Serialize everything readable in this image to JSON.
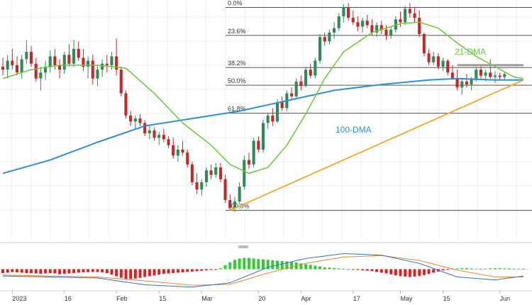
{
  "chart_data": {
    "type": "candlestick",
    "title": "",
    "xlabel": "",
    "ylabel": "",
    "x_tick_labels": [
      "2023",
      "16",
      "Feb",
      "15",
      "Mar",
      "20",
      "Apr",
      "17",
      "May",
      "15",
      "Jun"
    ],
    "x_tick_index": [
      2,
      13,
      24,
      33,
      42,
      54,
      63,
      74,
      84,
      93,
      105
    ],
    "index_range": [
      0,
      110
    ],
    "price_range": [
      0.865,
      1.023
    ],
    "grid": true,
    "colors": {
      "bull": "#2e8b57",
      "bear": "#c62828",
      "dma21": "#66cc33",
      "dma100": "#2f8fd8",
      "trend": "#f5a623",
      "resistance": "#999999",
      "fib": "#555555",
      "macd_line": "#2f6fd0",
      "signal_line": "#e8862c",
      "hist_pos": "#33cc33",
      "hist_neg": "#e02020"
    },
    "candles": [
      [
        0.978,
        0.984,
        0.972,
        0.976
      ],
      [
        0.976,
        0.986,
        0.97,
        0.982
      ],
      [
        0.982,
        0.99,
        0.976,
        0.979
      ],
      [
        0.979,
        0.985,
        0.972,
        0.974
      ],
      [
        0.974,
        0.986,
        0.97,
        0.983
      ],
      [
        0.983,
        0.996,
        0.98,
        0.988
      ],
      [
        0.988,
        0.992,
        0.978,
        0.98
      ],
      [
        0.98,
        0.984,
        0.968,
        0.97
      ],
      [
        0.97,
        0.978,
        0.962,
        0.974
      ],
      [
        0.974,
        0.982,
        0.969,
        0.978
      ],
      [
        0.978,
        0.989,
        0.974,
        0.985
      ],
      [
        0.985,
        0.99,
        0.976,
        0.979
      ],
      [
        0.979,
        0.983,
        0.97,
        0.976
      ],
      [
        0.976,
        0.988,
        0.973,
        0.986
      ],
      [
        0.986,
        0.993,
        0.978,
        0.98
      ],
      [
        0.98,
        0.996,
        0.978,
        0.99
      ],
      [
        0.99,
        0.995,
        0.982,
        0.984
      ],
      [
        0.984,
        0.99,
        0.975,
        0.978
      ],
      [
        0.978,
        0.985,
        0.97,
        0.982
      ],
      [
        0.982,
        0.986,
        0.966,
        0.97
      ],
      [
        0.97,
        0.979,
        0.965,
        0.976
      ],
      [
        0.976,
        0.983,
        0.971,
        0.98
      ],
      [
        0.98,
        0.986,
        0.974,
        0.979
      ],
      [
        0.979,
        0.988,
        0.976,
        0.985
      ],
      [
        0.985,
        0.997,
        0.972,
        0.976
      ],
      [
        0.976,
        0.978,
        0.958,
        0.96
      ],
      [
        0.96,
        0.962,
        0.943,
        0.945
      ],
      [
        0.945,
        0.948,
        0.938,
        0.941
      ],
      [
        0.941,
        0.945,
        0.936,
        0.943
      ],
      [
        0.943,
        0.946,
        0.938,
        0.94
      ],
      [
        0.94,
        0.942,
        0.931,
        0.933
      ],
      [
        0.933,
        0.938,
        0.929,
        0.935
      ],
      [
        0.935,
        0.937,
        0.928,
        0.93
      ],
      [
        0.93,
        0.934,
        0.925,
        0.932
      ],
      [
        0.932,
        0.936,
        0.927,
        0.929
      ],
      [
        0.929,
        0.931,
        0.923,
        0.925
      ],
      [
        0.925,
        0.93,
        0.916,
        0.918
      ],
      [
        0.918,
        0.925,
        0.914,
        0.922
      ],
      [
        0.922,
        0.928,
        0.918,
        0.92
      ],
      [
        0.92,
        0.922,
        0.91,
        0.912
      ],
      [
        0.912,
        0.914,
        0.898,
        0.9
      ],
      [
        0.9,
        0.906,
        0.892,
        0.895
      ],
      [
        0.895,
        0.902,
        0.891,
        0.9
      ],
      [
        0.9,
        0.91,
        0.897,
        0.908
      ],
      [
        0.908,
        0.912,
        0.902,
        0.905
      ],
      [
        0.905,
        0.913,
        0.903,
        0.91
      ],
      [
        0.91,
        0.913,
        0.9,
        0.902
      ],
      [
        0.902,
        0.905,
        0.886,
        0.888
      ],
      [
        0.888,
        0.892,
        0.881,
        0.883
      ],
      [
        0.883,
        0.89,
        0.88,
        0.887
      ],
      [
        0.887,
        0.9,
        0.885,
        0.897
      ],
      [
        0.897,
        0.918,
        0.895,
        0.915
      ],
      [
        0.915,
        0.92,
        0.909,
        0.912
      ],
      [
        0.912,
        0.93,
        0.91,
        0.928
      ],
      [
        0.928,
        0.931,
        0.92,
        0.922
      ],
      [
        0.922,
        0.942,
        0.92,
        0.94
      ],
      [
        0.94,
        0.947,
        0.936,
        0.945
      ],
      [
        0.945,
        0.95,
        0.938,
        0.941
      ],
      [
        0.941,
        0.956,
        0.94,
        0.954
      ],
      [
        0.954,
        0.958,
        0.948,
        0.95
      ],
      [
        0.95,
        0.962,
        0.948,
        0.96
      ],
      [
        0.96,
        0.964,
        0.956,
        0.958
      ],
      [
        0.958,
        0.97,
        0.956,
        0.968
      ],
      [
        0.968,
        0.972,
        0.962,
        0.965
      ],
      [
        0.965,
        0.978,
        0.964,
        0.976
      ],
      [
        0.976,
        0.98,
        0.97,
        0.972
      ],
      [
        0.972,
        0.984,
        0.97,
        0.982
      ],
      [
        0.982,
        1.0,
        0.98,
        0.998
      ],
      [
        0.998,
        1.001,
        0.992,
        0.995
      ],
      [
        0.995,
        1.003,
        0.993,
        1.001
      ],
      [
        1.001,
        1.008,
        0.997,
        1.004
      ],
      [
        1.004,
        1.014,
        1.002,
        1.012
      ],
      [
        1.012,
        1.02,
        1.008,
        1.018
      ],
      [
        1.018,
        1.021,
        1.009,
        1.011
      ],
      [
        1.011,
        1.016,
        1.006,
        1.008
      ],
      [
        1.008,
        1.012,
        1.002,
        1.005
      ],
      [
        1.005,
        1.011,
        1.001,
        1.009
      ],
      [
        1.009,
        1.013,
        1.004,
        1.006
      ],
      [
        1.006,
        1.01,
        0.999,
        1.001
      ],
      [
        1.001,
        1.008,
        0.998,
        1.006
      ],
      [
        1.006,
        1.009,
        1.0,
        1.003
      ],
      [
        1.003,
        1.006,
        0.996,
        0.999
      ],
      [
        0.999,
        1.005,
        0.997,
        1.003
      ],
      [
        1.003,
        1.012,
        1.001,
        1.01
      ],
      [
        1.01,
        1.015,
        1.005,
        1.008
      ],
      [
        1.008,
        1.019,
        1.006,
        1.017
      ],
      [
        1.017,
        1.021,
        1.011,
        1.014
      ],
      [
        1.014,
        1.018,
        1.008,
        1.011
      ],
      [
        1.011,
        1.016,
        0.998,
        1.0
      ],
      [
        1.0,
        1.001,
        0.985,
        0.987
      ],
      [
        0.987,
        0.99,
        0.979,
        0.981
      ],
      [
        0.981,
        0.988,
        0.979,
        0.985
      ],
      [
        0.985,
        0.987,
        0.976,
        0.978
      ],
      [
        0.978,
        0.984,
        0.975,
        0.982
      ],
      [
        0.982,
        0.983,
        0.972,
        0.974
      ],
      [
        0.974,
        0.979,
        0.969,
        0.97
      ],
      [
        0.97,
        0.976,
        0.962,
        0.964
      ],
      [
        0.964,
        0.97,
        0.959,
        0.968
      ],
      [
        0.968,
        0.973,
        0.964,
        0.966
      ],
      [
        0.966,
        0.971,
        0.962,
        0.97
      ],
      [
        0.97,
        0.978,
        0.968,
        0.976
      ],
      [
        0.976,
        0.979,
        0.97,
        0.972
      ],
      [
        0.972,
        0.976,
        0.968,
        0.974
      ],
      [
        0.974,
        0.983,
        0.97,
        0.971
      ],
      [
        0.971,
        0.975,
        0.967,
        0.972
      ],
      [
        0.972,
        0.974,
        0.969,
        0.971
      ],
      [
        0.971,
        0.974,
        0.969,
        0.973
      ]
    ],
    "fibonacci": [
      {
        "label": "0.0%",
        "value": 1.018
      },
      {
        "label": "23.6%",
        "value": 0.9991
      },
      {
        "label": "38.2%",
        "value": 0.9774
      },
      {
        "label": "50.0%",
        "value": 0.9655
      },
      {
        "label": "61.8%",
        "value": 0.9466
      },
      {
        "label": "100.0%",
        "value": 0.881
      }
    ],
    "dma21": {
      "label": "21-DMA",
      "points": [
        [
          0,
          0.97
        ],
        [
          6,
          0.976
        ],
        [
          12,
          0.979
        ],
        [
          20,
          0.979
        ],
        [
          26,
          0.977
        ],
        [
          32,
          0.96
        ],
        [
          38,
          0.94
        ],
        [
          44,
          0.925
        ],
        [
          48,
          0.912
        ],
        [
          52,
          0.906
        ],
        [
          56,
          0.91
        ],
        [
          60,
          0.925
        ],
        [
          64,
          0.946
        ],
        [
          68,
          0.97
        ],
        [
          72,
          0.988
        ],
        [
          78,
          1.001
        ],
        [
          84,
          1.007
        ],
        [
          88,
          1.008
        ],
        [
          92,
          1.004
        ],
        [
          96,
          0.994
        ],
        [
          100,
          0.985
        ],
        [
          104,
          0.978
        ],
        [
          108,
          0.971
        ],
        [
          110,
          0.97
        ]
      ]
    },
    "dma100": {
      "label": "100-DMA",
      "points": [
        [
          0,
          0.906
        ],
        [
          10,
          0.915
        ],
        [
          20,
          0.927
        ],
        [
          30,
          0.938
        ],
        [
          40,
          0.943
        ],
        [
          50,
          0.948
        ],
        [
          60,
          0.955
        ],
        [
          70,
          0.962
        ],
        [
          80,
          0.966
        ],
        [
          90,
          0.969
        ],
        [
          96,
          0.97
        ],
        [
          104,
          0.969
        ],
        [
          110,
          0.969
        ]
      ]
    },
    "trendline": {
      "points": [
        [
          48,
          0.881
        ],
        [
          110,
          0.969
        ]
      ]
    },
    "resistance": {
      "points": [
        [
          96,
          0.979
        ],
        [
          110,
          0.979
        ]
      ]
    },
    "macd": {
      "range": [
        -1,
        1
      ],
      "macd_line": [
        [
          0,
          -0.35
        ],
        [
          10,
          -0.4
        ],
        [
          20,
          -0.45
        ],
        [
          30,
          -0.8
        ],
        [
          40,
          -0.92
        ],
        [
          48,
          -0.7
        ],
        [
          56,
          0.1
        ],
        [
          64,
          0.55
        ],
        [
          72,
          0.8
        ],
        [
          80,
          0.72
        ],
        [
          88,
          0.3
        ],
        [
          96,
          -0.4
        ],
        [
          104,
          -0.55
        ],
        [
          110,
          -0.35
        ]
      ],
      "signal_line": [
        [
          0,
          -0.3
        ],
        [
          10,
          -0.35
        ],
        [
          20,
          -0.4
        ],
        [
          30,
          -0.6
        ],
        [
          40,
          -0.82
        ],
        [
          48,
          -0.78
        ],
        [
          56,
          -0.2
        ],
        [
          64,
          0.3
        ],
        [
          72,
          0.62
        ],
        [
          80,
          0.7
        ],
        [
          88,
          0.45
        ],
        [
          96,
          -0.05
        ],
        [
          104,
          -0.4
        ],
        [
          110,
          -0.4
        ]
      ],
      "histogram": [
        -0.2,
        -0.18,
        -0.15,
        -0.16,
        -0.18,
        -0.2,
        -0.2,
        -0.22,
        -0.24,
        -0.22,
        -0.2,
        -0.22,
        -0.26,
        -0.24,
        -0.22,
        -0.2,
        -0.18,
        -0.16,
        -0.15,
        -0.14,
        -0.14,
        -0.16,
        -0.2,
        -0.28,
        -0.36,
        -0.44,
        -0.5,
        -0.5,
        -0.48,
        -0.44,
        -0.4,
        -0.36,
        -0.32,
        -0.28,
        -0.24,
        -0.22,
        -0.2,
        -0.18,
        -0.16,
        -0.14,
        -0.12,
        -0.1,
        -0.08,
        -0.06,
        -0.04,
        -0.02,
        0.05,
        0.2,
        0.35,
        0.48,
        0.55,
        0.58,
        0.58,
        0.55,
        0.52,
        0.5,
        0.48,
        0.46,
        0.44,
        0.42,
        0.4,
        0.38,
        0.34,
        0.3,
        0.26,
        0.22,
        0.18,
        0.14,
        0.1,
        0.08,
        0.06,
        0.04,
        0.02,
        0.0,
        -0.02,
        -0.04,
        -0.06,
        -0.08,
        -0.1,
        -0.14,
        -0.18,
        -0.22,
        -0.26,
        -0.32,
        -0.36,
        -0.38,
        -0.4,
        -0.38,
        -0.34,
        -0.3,
        -0.24,
        -0.18,
        -0.12,
        -0.06,
        -0.02,
        0.02,
        0.04,
        0.05,
        0.05,
        0.04,
        0.02,
        0.02,
        0.03,
        0.04,
        0.05,
        0.05,
        0.04,
        0.04,
        0.03,
        0.03,
        0.02
      ]
    }
  }
}
